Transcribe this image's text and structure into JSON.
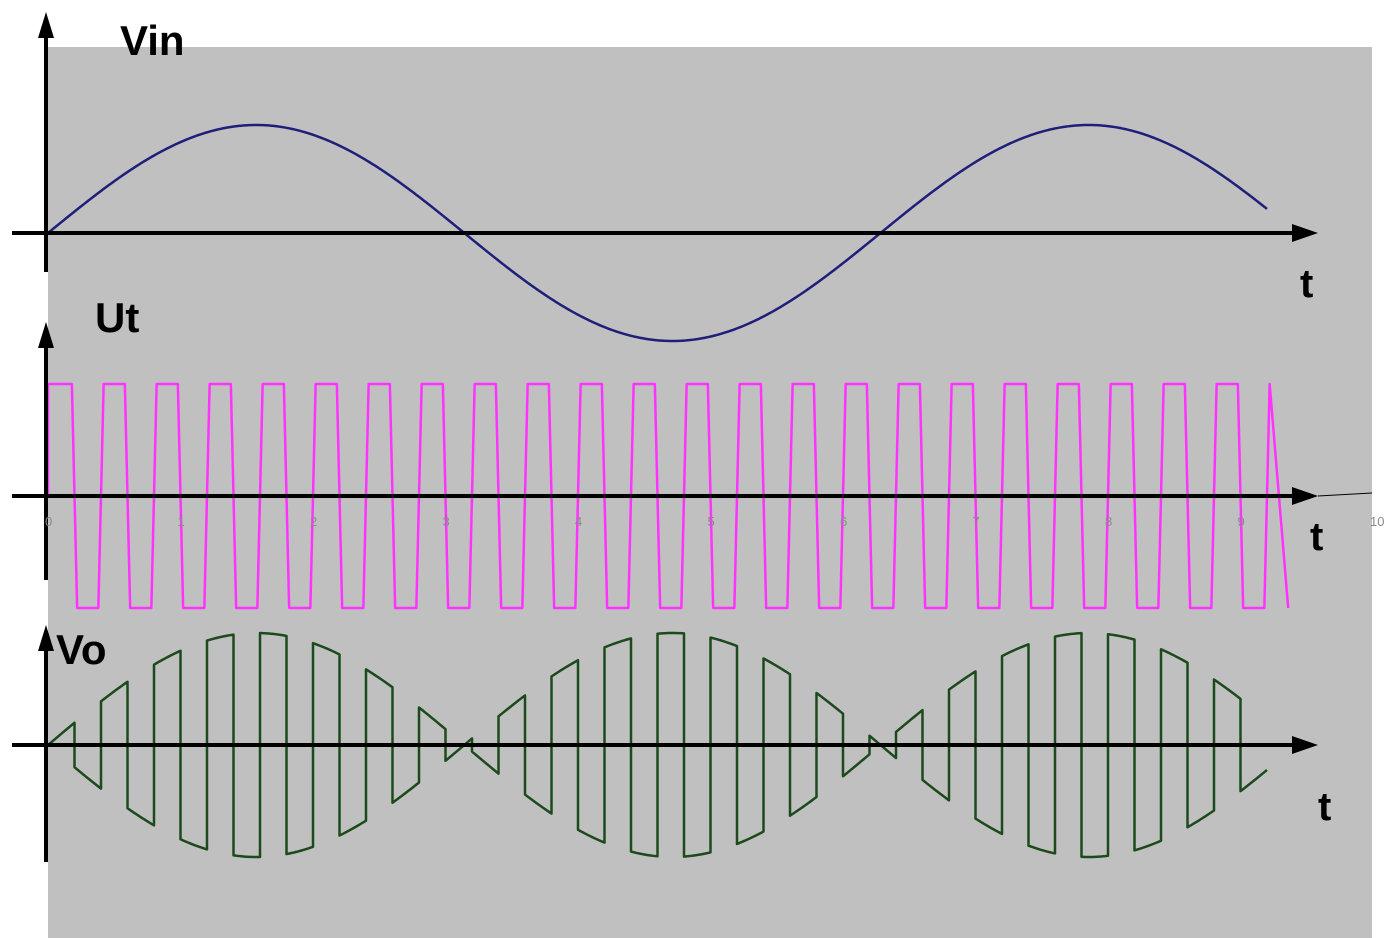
{
  "chart_data": [
    {
      "type": "line",
      "panel": "Vin",
      "label": "Vin",
      "xlabel": "t",
      "xlim": [
        0,
        9.2
      ],
      "ylim": [
        -1,
        1
      ],
      "grid": false,
      "background": "#c0c0c0",
      "color": "#1f1f7a",
      "series": [
        {
          "function": "sin(t)",
          "amplitude": 1,
          "frequency_rad_per_unit": 1,
          "phase": 0,
          "x_start": 0,
          "x_end": 9.2
        }
      ]
    },
    {
      "type": "line",
      "panel": "Ut",
      "label": "Ut",
      "xlabel": "t",
      "xlim": [
        0,
        10
      ],
      "ylim": [
        -1,
        1
      ],
      "grid": false,
      "background": "#c0c0c0",
      "color": "#ff33ff",
      "xticks": [
        "0",
        "1",
        "2",
        "3",
        "4",
        "5",
        "6",
        "7",
        "8",
        "9",
        "10"
      ],
      "series": [
        {
          "function": "square",
          "amplitude": 1,
          "period": 0.4,
          "x_start": 0,
          "x_end": 9.2
        }
      ]
    },
    {
      "type": "line",
      "panel": "Vo",
      "label": "Vo",
      "xlabel": "t",
      "xlim": [
        0,
        9.2
      ],
      "ylim": [
        -1,
        1
      ],
      "grid": false,
      "background": "#c0c0c0",
      "color": "#1c4a1c",
      "series": [
        {
          "function": "sin(t) * square(t)",
          "amplitude": 1,
          "period": 0.4,
          "x_start": 0,
          "x_end": 9.2
        }
      ]
    }
  ],
  "colors": {
    "background": "#c0c0c0",
    "axes": "#000000",
    "vin": "#1f1f7a",
    "ut": "#ff33ff",
    "vo": "#1c4a1c"
  }
}
